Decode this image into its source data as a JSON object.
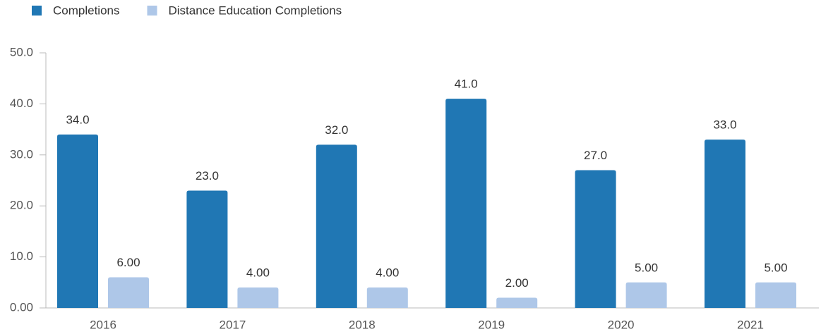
{
  "chart_data": {
    "type": "bar",
    "categories": [
      "2016",
      "2017",
      "2018",
      "2019",
      "2020",
      "2021"
    ],
    "series": [
      {
        "name": "Completions",
        "color": "#2077b4",
        "values": [
          34,
          23,
          32,
          41,
          27,
          33
        ],
        "value_labels": [
          "34.0",
          "23.0",
          "32.0",
          "41.0",
          "27.0",
          "33.0"
        ]
      },
      {
        "name": "Distance Education Completions",
        "color": "#aec7e8",
        "values": [
          6,
          4,
          4,
          2,
          5,
          5
        ],
        "value_labels": [
          "6.00",
          "4.00",
          "4.00",
          "2.00",
          "5.00",
          "5.00"
        ]
      }
    ],
    "ylim": [
      0,
      50
    ],
    "yticks": [
      {
        "value": 0,
        "label": "0.00"
      },
      {
        "value": 10,
        "label": "10.0"
      },
      {
        "value": 20,
        "label": "20.0"
      },
      {
        "value": 30,
        "label": "30.0"
      },
      {
        "value": 40,
        "label": "40.0"
      },
      {
        "value": 50,
        "label": "50.0"
      }
    ],
    "legend": "top-left"
  }
}
